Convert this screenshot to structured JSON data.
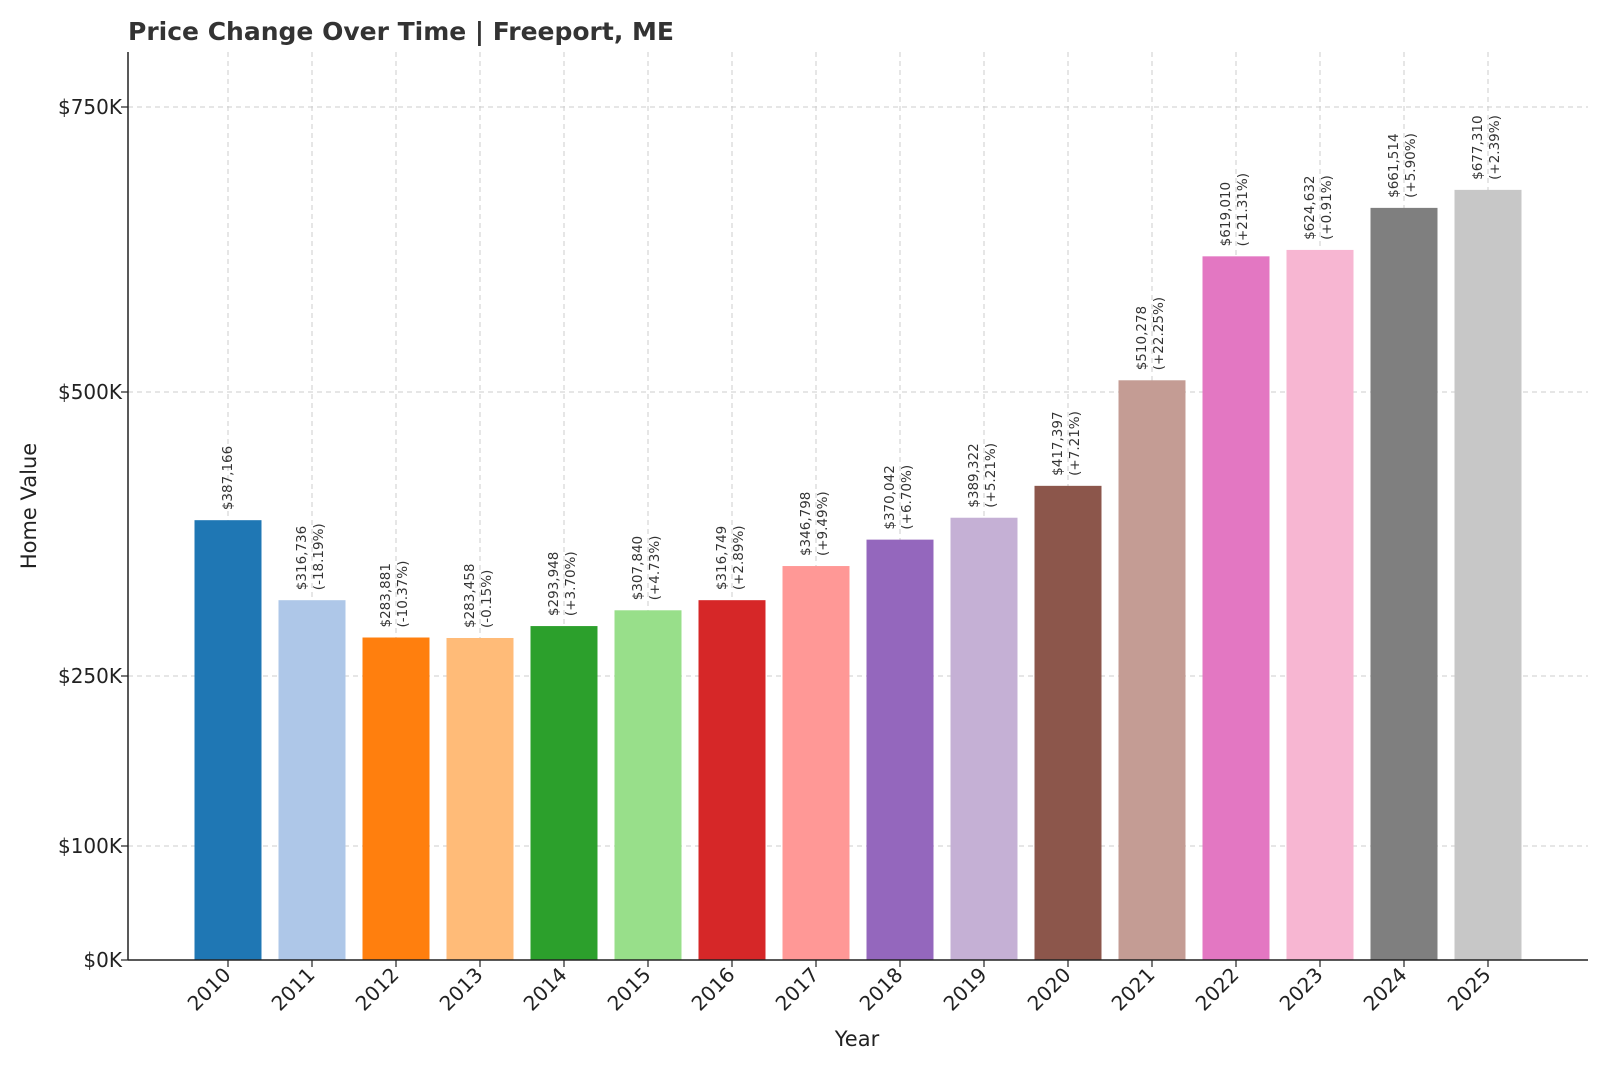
{
  "chart_data": {
    "type": "bar",
    "title": "Price Change Over Time | Freeport, ME",
    "xlabel": "Year",
    "ylabel": "Home Value",
    "categories": [
      "2010",
      "2011",
      "2012",
      "2013",
      "2014",
      "2015",
      "2016",
      "2017",
      "2018",
      "2019",
      "2020",
      "2021",
      "2022",
      "2023",
      "2024",
      "2025"
    ],
    "values": [
      387166,
      316736,
      283881,
      283458,
      293948,
      307840,
      316749,
      346798,
      370042,
      389322,
      417397,
      510278,
      619010,
      624632,
      661514,
      677310
    ],
    "value_labels": [
      "$387,166",
      "$316,736",
      "$283,881",
      "$283,458",
      "$293,948",
      "$307,840",
      "$316,749",
      "$346,798",
      "$370,042",
      "$389,322",
      "$417,397",
      "$510,278",
      "$619,010",
      "$624,632",
      "$661,514",
      "$677,310"
    ],
    "change_labels": [
      "",
      "(-18.19%)",
      "(-10.37%)",
      "(-0.15%)",
      "(+3.70%)",
      "(+4.73%)",
      "(+2.89%)",
      "(+9.49%)",
      "(+6.70%)",
      "(+5.21%)",
      "(+7.21%)",
      "(+22.25%)",
      "(+21.31%)",
      "(+0.91%)",
      "(+5.90%)",
      "(+2.39%)"
    ],
    "colors": [
      "#1f77b4",
      "#aec7e8",
      "#ff7f0e",
      "#ffbb78",
      "#2ca02c",
      "#98df8a",
      "#d62728",
      "#ff9896",
      "#9467bd",
      "#c5b0d5",
      "#8c564b",
      "#c49c94",
      "#e377c2",
      "#f7b6d2",
      "#7f7f7f",
      "#c7c7c7"
    ],
    "yticks": [
      {
        "value": 0,
        "label": "$0K"
      },
      {
        "value": 100000,
        "label": "$100K"
      },
      {
        "value": 250000,
        "label": "$250K"
      },
      {
        "value": 500000,
        "label": "$500K"
      },
      {
        "value": 750000,
        "label": "$750K"
      }
    ],
    "ylim": [
      0,
      800000
    ],
    "grid": true,
    "legend": "none"
  }
}
